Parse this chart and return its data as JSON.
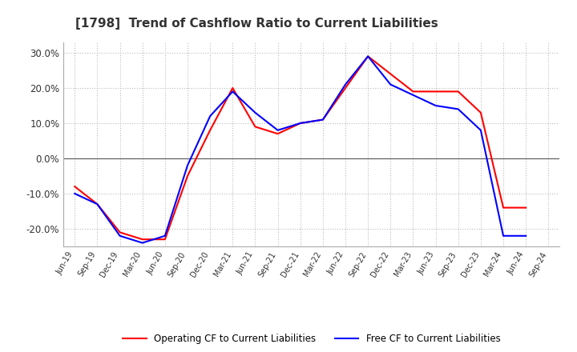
{
  "title": "[1798]  Trend of Cashflow Ratio to Current Liabilities",
  "x_labels": [
    "Jun-19",
    "Sep-19",
    "Dec-19",
    "Mar-20",
    "Jun-20",
    "Sep-20",
    "Dec-20",
    "Mar-21",
    "Jun-21",
    "Sep-21",
    "Dec-21",
    "Mar-22",
    "Jun-22",
    "Sep-22",
    "Dec-22",
    "Mar-23",
    "Jun-23",
    "Sep-23",
    "Dec-23",
    "Mar-24",
    "Jun-24",
    "Sep-24"
  ],
  "operating_cf": [
    -0.08,
    -0.13,
    -0.21,
    -0.23,
    -0.23,
    -0.05,
    0.08,
    0.2,
    0.09,
    0.07,
    0.1,
    0.11,
    0.2,
    0.29,
    0.24,
    0.19,
    0.19,
    0.19,
    0.13,
    -0.14,
    -0.14,
    null
  ],
  "free_cf": [
    -0.1,
    -0.13,
    -0.22,
    -0.24,
    -0.22,
    -0.02,
    0.12,
    0.19,
    0.13,
    0.08,
    0.1,
    0.11,
    0.21,
    0.29,
    0.21,
    0.18,
    0.15,
    0.14,
    0.08,
    -0.22,
    -0.22,
    null
  ],
  "ylim": [
    -0.25,
    0.33
  ],
  "yticks": [
    -0.2,
    -0.1,
    0.0,
    0.1,
    0.2,
    0.3
  ],
  "operating_color": "#ff0000",
  "free_color": "#0000ff",
  "background_color": "#ffffff",
  "grid_color": "#bbbbbb",
  "title_fontsize": 11,
  "legend_operating": "Operating CF to Current Liabilities",
  "legend_free": "Free CF to Current Liabilities"
}
